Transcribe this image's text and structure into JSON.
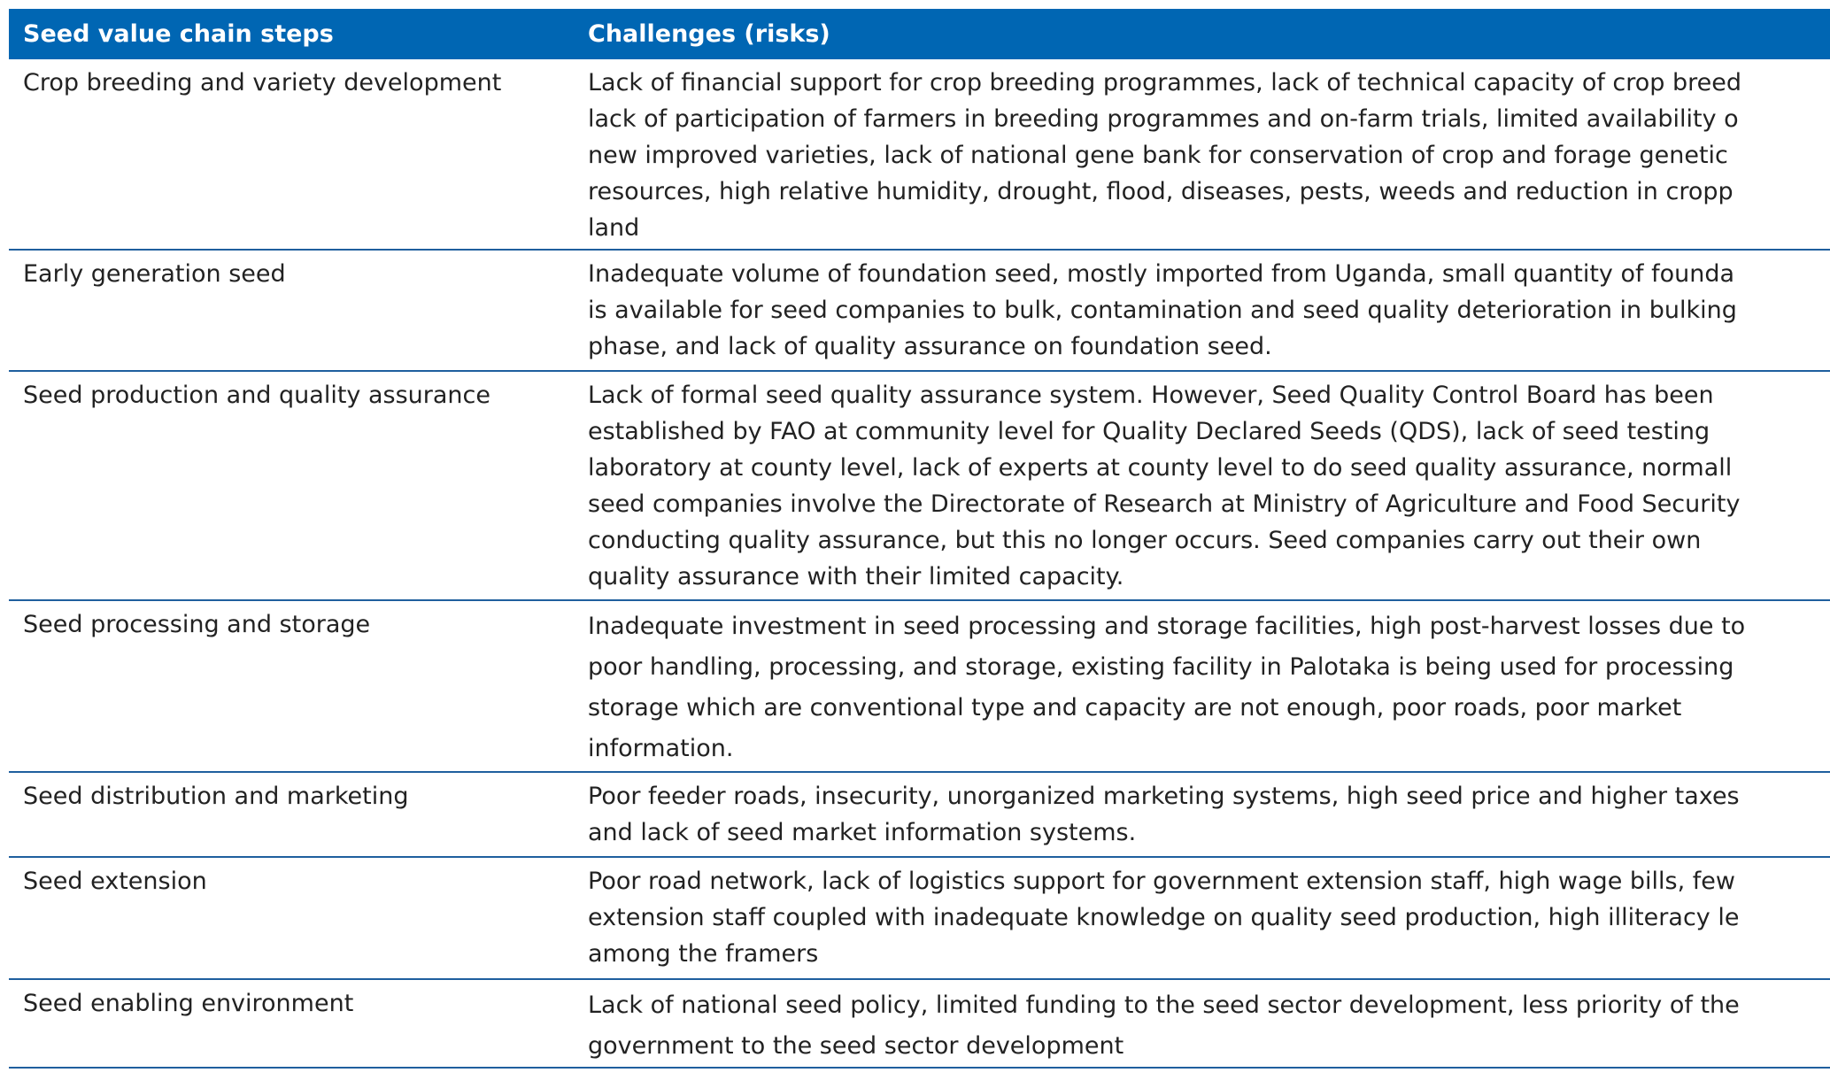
{
  "table": {
    "header": [
      "Seed value chain steps",
      "Challenges (risks)"
    ],
    "rows": [
      {
        "step": "Crop breeding and variety development",
        "challenges": [
          "Lack of financial support for crop breeding programmes, lack of technical capacity of crop breed",
          "lack of participation of farmers in breeding programmes and on-farm trials, limited availability o",
          "new improved varieties, lack of national gene bank for conservation of crop and forage genetic",
          "resources, high relative humidity, drought, flood, diseases, pests, weeds and reduction in cropp",
          "land"
        ]
      },
      {
        "step": "Early generation seed",
        "challenges": [
          "Inadequate volume of foundation seed, mostly imported from Uganda, small quantity of founda",
          "is available for seed companies to bulk, contamination and seed quality deterioration in bulking",
          "phase, and lack of quality assurance on foundation seed."
        ]
      },
      {
        "step": "Seed production and quality assurance",
        "challenges": [
          "Lack of formal seed quality assurance system. However, Seed Quality Control Board has been",
          "established by FAO at community level for Quality Declared Seeds (QDS), lack of seed testing",
          "laboratory at county level, lack of experts at county level to do seed quality assurance, normall",
          "seed companies involve the Directorate of Research at Ministry of Agriculture and Food Security",
          "conducting quality assurance, but this no longer occurs.  Seed companies carry out their own",
          "quality assurance with their limited capacity."
        ]
      },
      {
        "step": "Seed processing and storage",
        "challenges": [
          "Inadequate investment in seed processing and storage facilities, high post-harvest losses due to",
          "poor handling, processing, and storage, existing facility in Palotaka is being used for processing",
          "storage which are conventional type and capacity are not enough, poor roads, poor market",
          "information."
        ]
      },
      {
        "step": "Seed distribution and marketing",
        "challenges": [
          "Poor feeder roads, insecurity, unorganized marketing systems, high seed price and higher taxes",
          "and lack of seed market information systems."
        ]
      },
      {
        "step": "Seed extension",
        "challenges": [
          "Poor road network, lack of logistics support for government extension staff, high wage bills, few",
          "extension staff coupled with inadequate knowledge on quality seed production, high illiteracy le",
          "among the framers"
        ]
      },
      {
        "step": "Seed enabling environment",
        "challenges": [
          "Lack of national seed policy, limited funding to the seed sector development, less priority of the",
          "government to the seed sector development"
        ]
      }
    ]
  }
}
